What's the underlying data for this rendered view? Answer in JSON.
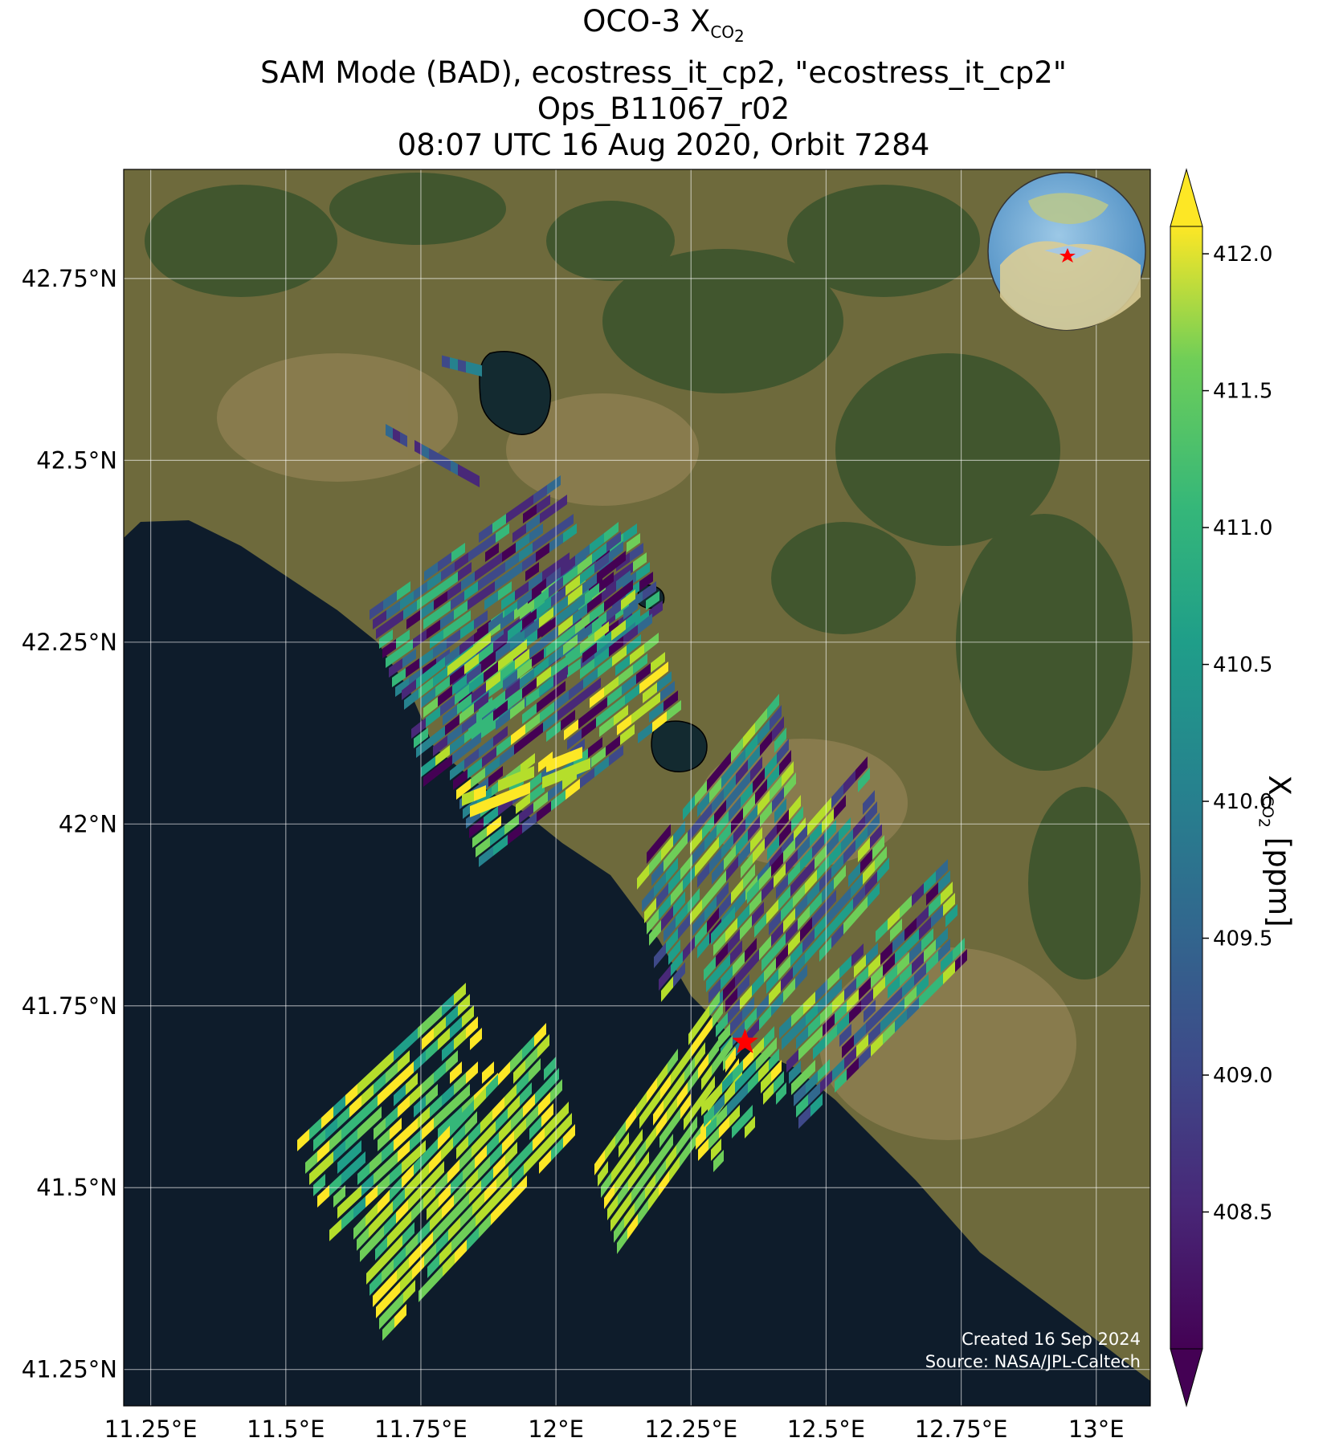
{
  "title": {
    "line1_prefix": "OCO-3 X",
    "line1_sub": "CO",
    "line1_subsub": "2",
    "line2": "SAM Mode (BAD), ecostress_it_cp2, \"ecostress_it_cp2\"",
    "line3": "Ops_B11067_r02",
    "line4": "08:07 UTC 16 Aug 2020, Orbit 7284"
  },
  "map": {
    "lat_ticks": [
      "42.75°N",
      "42.5°N",
      "42.25°N",
      "42°N",
      "41.75°N",
      "41.5°N",
      "41.25°N"
    ],
    "lon_ticks": [
      "11.25°E",
      "11.5°E",
      "11.75°E",
      "12°E",
      "12.25°E",
      "12.5°E",
      "12.75°E",
      "13°E"
    ],
    "lat_values": [
      42.75,
      42.5,
      42.25,
      42.0,
      41.75,
      41.5,
      41.25
    ],
    "lon_values": [
      11.25,
      11.5,
      11.75,
      12.0,
      12.25,
      12.5,
      12.75,
      13.0
    ],
    "lat_range": [
      41.2,
      42.9
    ],
    "lon_range": [
      11.2,
      13.1
    ],
    "target_marker": "red-star",
    "target_lon": 12.35,
    "target_lat": 41.7,
    "inset": "globe-locator"
  },
  "colorbar": {
    "ticks": [
      "412.0",
      "411.5",
      "411.0",
      "410.5",
      "410.0",
      "409.5",
      "409.0",
      "408.5"
    ],
    "tick_values": [
      412.0,
      411.5,
      411.0,
      410.5,
      410.0,
      409.5,
      409.0,
      408.5
    ],
    "range": [
      408.0,
      412.1
    ],
    "colormap": "viridis",
    "colors": [
      "#440154",
      "#3b528b",
      "#21918c",
      "#5ec962",
      "#fde725"
    ],
    "label_prefix": "X",
    "label_sub": "CO",
    "label_subsub": "2",
    "label_suffix": " [ppm]"
  },
  "credits": {
    "created": "Created 16 Sep 2024",
    "source": "Source: NASA/JPL-Caltech"
  },
  "colors": {
    "sea": "#0e1c2b",
    "land": "#6e6a3c",
    "forest": "#2f4a22",
    "marker": "#ff0000"
  }
}
